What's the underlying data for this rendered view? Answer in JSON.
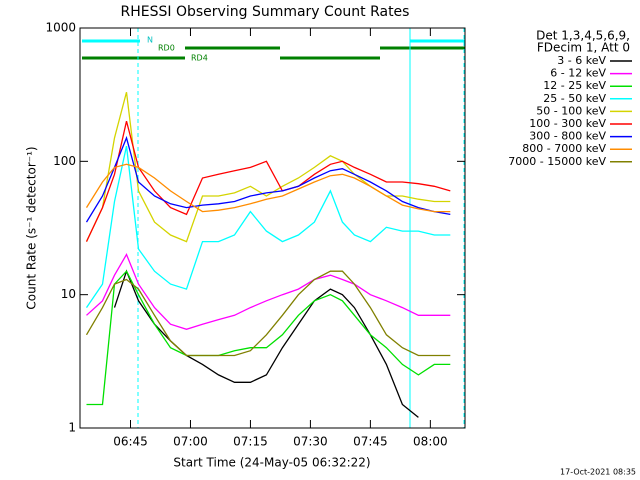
{
  "chart_data": {
    "type": "line",
    "title": "RHESSI Observing Summary Count Rates",
    "x_label": "Start Time (24-May-05 06:32:22)",
    "y_label": "Count Rate (s⁻¹ detector⁻¹)",
    "legend_header": [
      "Det 1,3,4,5,6,9,",
      "FDecim 1, Att 0"
    ],
    "timestamp": "17-Oct-2021 08:35",
    "annotations": [
      "N",
      "RD0",
      "RD4"
    ],
    "log_y": true,
    "xlim": [
      "06:32:22",
      "08:08:40"
    ],
    "xticks": [
      "06:45",
      "07:00",
      "07:15",
      "07:30",
      "07:45",
      "08:00"
    ],
    "ylim": [
      1,
      1000
    ],
    "yticks": [
      1,
      10,
      100,
      1000
    ],
    "x": [
      "06:34",
      "06:38",
      "06:41",
      "06:44",
      "06:47",
      "06:51",
      "06:55",
      "06:59",
      "07:03",
      "07:07",
      "07:11",
      "07:15",
      "07:19",
      "07:23",
      "07:27",
      "07:31",
      "07:35",
      "07:38",
      "07:41",
      "07:45",
      "07:49",
      "07:53",
      "07:57",
      "08:01",
      "08:05"
    ],
    "series": [
      {
        "name": "3 - 6 keV",
        "color": "#000000",
        "values": [
          null,
          null,
          8,
          15,
          9,
          6,
          4.5,
          3.5,
          3,
          2.5,
          2.2,
          2.2,
          2.5,
          4,
          6,
          9,
          11,
          10,
          8,
          5,
          3,
          1.5,
          1.2,
          null,
          null
        ]
      },
      {
        "name": "6 - 12 keV",
        "color": "#ff00ff",
        "values": [
          7,
          9,
          14,
          20,
          12,
          8,
          6,
          5.5,
          6,
          6.5,
          7,
          8,
          9,
          10,
          11,
          13,
          14,
          13,
          12,
          10,
          9,
          8,
          7,
          7,
          7
        ]
      },
      {
        "name": "12 - 25 keV",
        "color": "#00e000",
        "values": [
          1.5,
          1.5,
          12,
          15,
          10,
          6,
          4,
          3.5,
          3.5,
          3.5,
          3.8,
          4,
          4,
          5,
          7,
          9,
          10,
          9,
          7,
          5,
          4,
          3,
          2.5,
          3,
          3
        ]
      },
      {
        "name": "25 - 50 keV",
        "color": "#00ffff",
        "values": [
          8,
          12,
          50,
          130,
          22,
          15,
          12,
          11,
          25,
          25,
          28,
          42,
          30,
          25,
          28,
          35,
          60,
          35,
          28,
          25,
          32,
          30,
          30,
          28,
          28
        ]
      },
      {
        "name": "50 - 100 keV",
        "color": "#d4d400",
        "values": [
          25,
          45,
          150,
          330,
          60,
          35,
          28,
          25,
          55,
          55,
          58,
          65,
          55,
          65,
          75,
          90,
          110,
          100,
          80,
          65,
          55,
          55,
          52,
          50,
          50
        ]
      },
      {
        "name": "100 - 300 keV",
        "color": "#ff0000",
        "values": [
          25,
          45,
          80,
          200,
          90,
          60,
          45,
          40,
          75,
          80,
          85,
          90,
          100,
          60,
          65,
          80,
          95,
          100,
          90,
          80,
          70,
          70,
          68,
          65,
          60
        ]
      },
      {
        "name": "300 - 800 keV",
        "color": "#0000ff",
        "values": [
          35,
          55,
          90,
          150,
          70,
          55,
          48,
          45,
          47,
          48,
          50,
          55,
          58,
          60,
          65,
          75,
          85,
          88,
          80,
          70,
          60,
          50,
          45,
          42,
          40
        ]
      },
      {
        "name": "800 - 7000 keV",
        "color": "#ff8c00",
        "values": [
          45,
          70,
          90,
          95,
          90,
          75,
          60,
          50,
          42,
          43,
          45,
          48,
          52,
          55,
          62,
          70,
          78,
          80,
          75,
          65,
          55,
          47,
          44,
          42,
          42
        ]
      },
      {
        "name": "7000 - 15000 keV",
        "color": "#808000",
        "values": [
          5,
          8,
          12,
          13,
          11,
          7,
          4.5,
          3.5,
          3.5,
          3.5,
          3.5,
          3.8,
          5,
          7,
          10,
          13,
          15,
          15,
          12,
          8,
          5,
          4,
          3.5,
          3.5,
          3.5
        ]
      }
    ]
  }
}
